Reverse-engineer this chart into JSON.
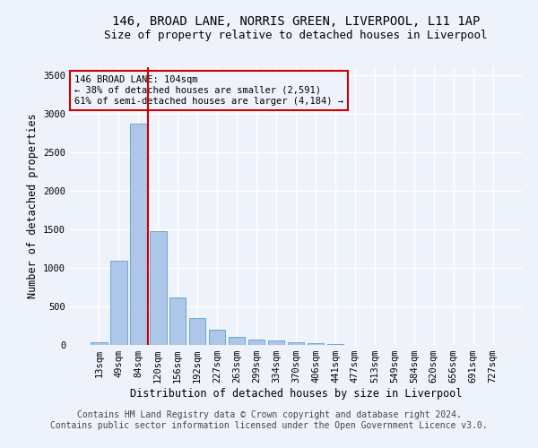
{
  "title1": "146, BROAD LANE, NORRIS GREEN, LIVERPOOL, L11 1AP",
  "title2": "Size of property relative to detached houses in Liverpool",
  "xlabel": "Distribution of detached houses by size in Liverpool",
  "ylabel": "Number of detached properties",
  "footer_line1": "Contains HM Land Registry data © Crown copyright and database right 2024.",
  "footer_line2": "Contains public sector information licensed under the Open Government Licence v3.0.",
  "bar_labels": [
    "13sqm",
    "49sqm",
    "84sqm",
    "120sqm",
    "156sqm",
    "192sqm",
    "227sqm",
    "263sqm",
    "299sqm",
    "334sqm",
    "370sqm",
    "406sqm",
    "441sqm",
    "477sqm",
    "513sqm",
    "549sqm",
    "584sqm",
    "620sqm",
    "656sqm",
    "691sqm",
    "727sqm"
  ],
  "bar_values": [
    40,
    1090,
    2870,
    1480,
    620,
    350,
    200,
    105,
    75,
    55,
    30,
    18,
    10,
    5,
    3,
    2,
    1,
    1,
    0,
    0,
    0
  ],
  "bar_color": "#aec6e8",
  "bar_edge_color": "#5a9fd4",
  "vline_color": "#cc0000",
  "vline_x": 2.5,
  "annotation_text": "146 BROAD LANE: 104sqm\n← 38% of detached houses are smaller (2,591)\n61% of semi-detached houses are larger (4,184) →",
  "annotation_box_color": "#cc0000",
  "annotation_bg_color": "#eef3fb",
  "ylim": [
    0,
    3600
  ],
  "yticks": [
    0,
    500,
    1000,
    1500,
    2000,
    2500,
    3000,
    3500
  ],
  "background_color": "#eef3fb",
  "grid_color": "#ffffff",
  "title1_fontsize": 10,
  "title2_fontsize": 9,
  "xlabel_fontsize": 8.5,
  "ylabel_fontsize": 8.5,
  "tick_fontsize": 7.5,
  "footer_fontsize": 7,
  "annot_fontsize": 7.5
}
